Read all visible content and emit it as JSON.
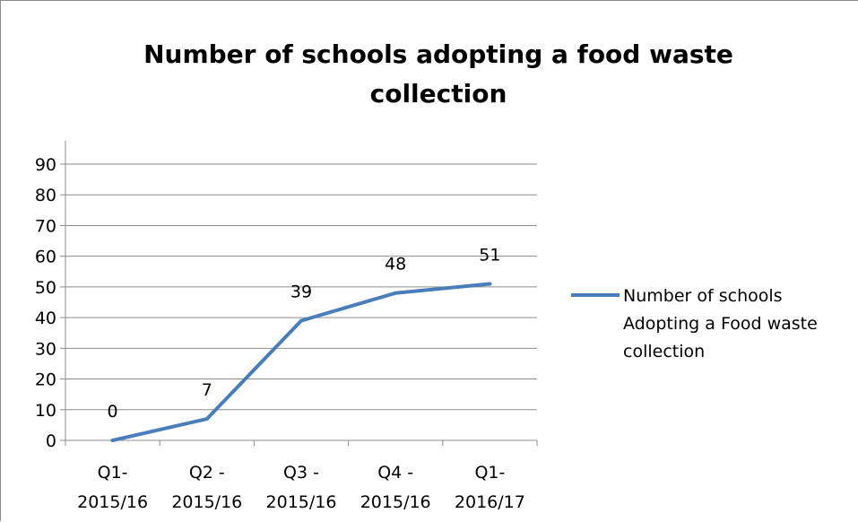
{
  "chart_data": {
    "type": "line",
    "title": "Number of schools adopting a food waste collection",
    "title_lines": [
      "Number of schools adopting a food waste",
      "collection"
    ],
    "categories": [
      "Q1- 2015/16",
      "Q2 - 2015/16",
      "Q3 - 2015/16",
      "Q4 - 2015/16",
      "Q1- 2016/17"
    ],
    "category_lines": [
      [
        "Q1-",
        "2015/16"
      ],
      [
        "Q2 -",
        "2015/16"
      ],
      [
        "Q3 -",
        "2015/16"
      ],
      [
        "Q4 -",
        "2015/16"
      ],
      [
        "Q1-",
        "2016/17"
      ]
    ],
    "series": [
      {
        "name": "Number of schools Adopting a Food waste collection",
        "values": [
          0,
          7,
          39,
          48,
          51
        ],
        "color": "#4a7ebb"
      }
    ],
    "data_labels": [
      "0",
      "7",
      "39",
      "48",
      "51"
    ],
    "y_ticks": [
      "0",
      "10",
      "20",
      "30",
      "40",
      "50",
      "60",
      "70",
      "80",
      "90"
    ],
    "ylim": [
      0,
      90
    ],
    "grid": true,
    "legend_position": "right",
    "legend_lines": [
      "Number of schools",
      "Adopting a Food waste",
      "collection"
    ],
    "xlabel": "",
    "ylabel": ""
  }
}
